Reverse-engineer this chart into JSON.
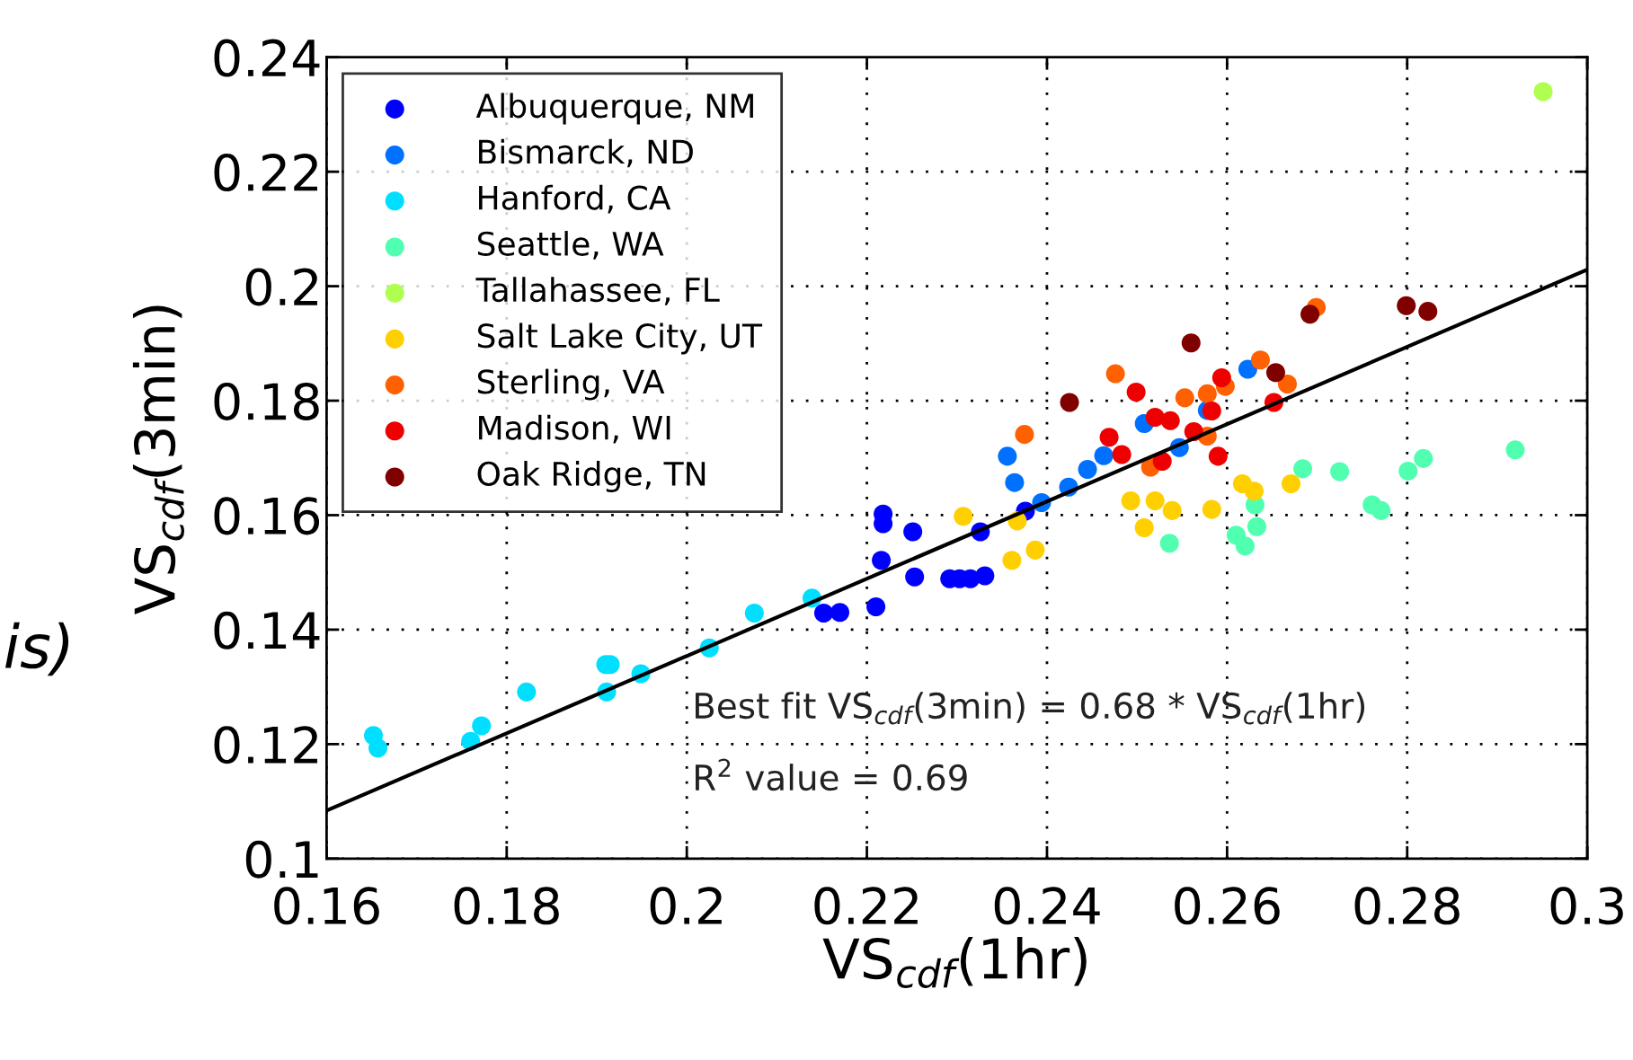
{
  "chart_data": {
    "type": "scatter",
    "xlabel": "VS$_{cdf}$(1hr)",
    "ylabel": "VS$_{cdf}$(3min)",
    "xlim": [
      0.16,
      0.3
    ],
    "xticks": [
      0.16,
      0.18,
      0.2,
      0.22,
      0.24,
      0.26,
      0.28,
      {
        "value": 0.3,
        "label": "0.3"
      }
    ],
    "ylim": [
      0.1,
      0.24
    ],
    "yticks": [
      0.1,
      0.12,
      0.14,
      0.16,
      0.18,
      0.2,
      0.22,
      0.24
    ],
    "grid": true,
    "legend": "top left",
    "annotations": [
      "Best fit VS$_{cdf}$(3min) = 0.68 * VS$_{cdf}$(1hr)",
      "R$^{2}$ value = 0.69",
      "is)"
    ],
    "series": [
      {
        "name": "Albuquerque, NM",
        "marker": "circle",
        "color": "#0000ff",
        "x": [
          0.2218,
          0.2218,
          0.2251,
          0.2326,
          0.2216,
          0.2253,
          0.2292,
          0.2303,
          0.2315,
          0.2331,
          0.2152,
          0.217,
          0.221,
          0.2376
        ],
        "values": [
          0.1602,
          0.1585,
          0.1571,
          0.1571,
          0.1521,
          0.1492,
          0.1489,
          0.1489,
          0.1489,
          0.1494,
          0.1429,
          0.143,
          0.144,
          0.1607
        ]
      },
      {
        "name": "Bismarck, ND",
        "marker": "circle",
        "color": "#0070ff",
        "x": [
          0.2356,
          0.2364,
          0.2394,
          0.2424,
          0.2445,
          0.2463,
          0.2508,
          0.2547,
          0.2578,
          0.2623
        ],
        "values": [
          0.1703,
          0.1657,
          0.1622,
          0.1649,
          0.168,
          0.1704,
          0.176,
          0.1718,
          0.1783,
          0.1855
        ]
      },
      {
        "name": "Hanford, CA",
        "marker": "circle",
        "color": "#00dfff",
        "x": [
          0.1652,
          0.1657,
          0.176,
          0.1772,
          0.1822,
          0.191,
          0.1915,
          0.1911,
          0.1949,
          0.2025,
          0.2075,
          0.2139
        ],
        "values": [
          0.1215,
          0.1193,
          0.1205,
          0.1232,
          0.1291,
          0.1339,
          0.1339,
          0.1291,
          0.1323,
          0.1368,
          0.1429,
          0.1455
        ]
      },
      {
        "name": "Seattle, WA",
        "marker": "circle",
        "color": "#50ffaf",
        "x": [
          0.2536,
          0.2684,
          0.2725,
          0.2801,
          0.2818,
          0.292,
          0.2761,
          0.2771,
          0.2631,
          0.2633,
          0.261,
          0.262
        ],
        "values": [
          0.1551,
          0.1681,
          0.1676,
          0.1677,
          0.1699,
          0.1714,
          0.1618,
          0.1608,
          0.1618,
          0.158,
          0.1565,
          0.1546
        ]
      },
      {
        "name": "Tallahassee, FL",
        "marker": "circle",
        "color": "#afff50",
        "x": [
          0.2951
        ],
        "values": [
          0.234
        ]
      },
      {
        "name": "Salt Lake City, UT",
        "marker": "circle",
        "color": "#ffcf00",
        "x": [
          0.2307,
          0.2367,
          0.2361,
          0.2387,
          0.2493,
          0.252,
          0.2539,
          0.2508,
          0.2583,
          0.2617,
          0.263,
          0.2671
        ],
        "values": [
          0.1598,
          0.159,
          0.1521,
          0.1539,
          0.1625,
          0.1625,
          0.1608,
          0.1578,
          0.161,
          0.1655,
          0.1642,
          0.1655
        ]
      },
      {
        "name": "Sterling, VA",
        "marker": "circle",
        "color": "#ff6000",
        "x": [
          0.2375,
          0.2476,
          0.2515,
          0.2553,
          0.2578,
          0.2598,
          0.2578,
          0.2637,
          0.2667,
          0.2699
        ],
        "values": [
          0.1741,
          0.1847,
          0.1684,
          0.1805,
          0.1812,
          0.1825,
          0.1738,
          0.1871,
          0.1829,
          0.1963
        ]
      },
      {
        "name": "Madison, WI",
        "marker": "circle",
        "color": "#ef0000",
        "x": [
          0.2499,
          0.2469,
          0.2483,
          0.252,
          0.2537,
          0.2563,
          0.2583,
          0.2594,
          0.2528,
          0.259,
          0.2652
        ],
        "values": [
          0.1815,
          0.1736,
          0.1706,
          0.1771,
          0.1765,
          0.1746,
          0.1782,
          0.184,
          0.1694,
          0.1703,
          0.1797
        ]
      },
      {
        "name": "Oak Ridge, TN",
        "marker": "circle",
        "color": "#800000",
        "x": [
          0.2425,
          0.256,
          0.2654,
          0.2692,
          0.2799,
          0.2823
        ],
        "values": [
          0.1797,
          0.1901,
          0.1849,
          0.1951,
          0.1966,
          0.1956
        ]
      },
      {
        "type": "line",
        "marker": "none",
        "color": "#000000",
        "x": [
          0.16,
          0.3
        ],
        "values": [
          0.1084,
          0.2029
        ]
      }
    ]
  }
}
